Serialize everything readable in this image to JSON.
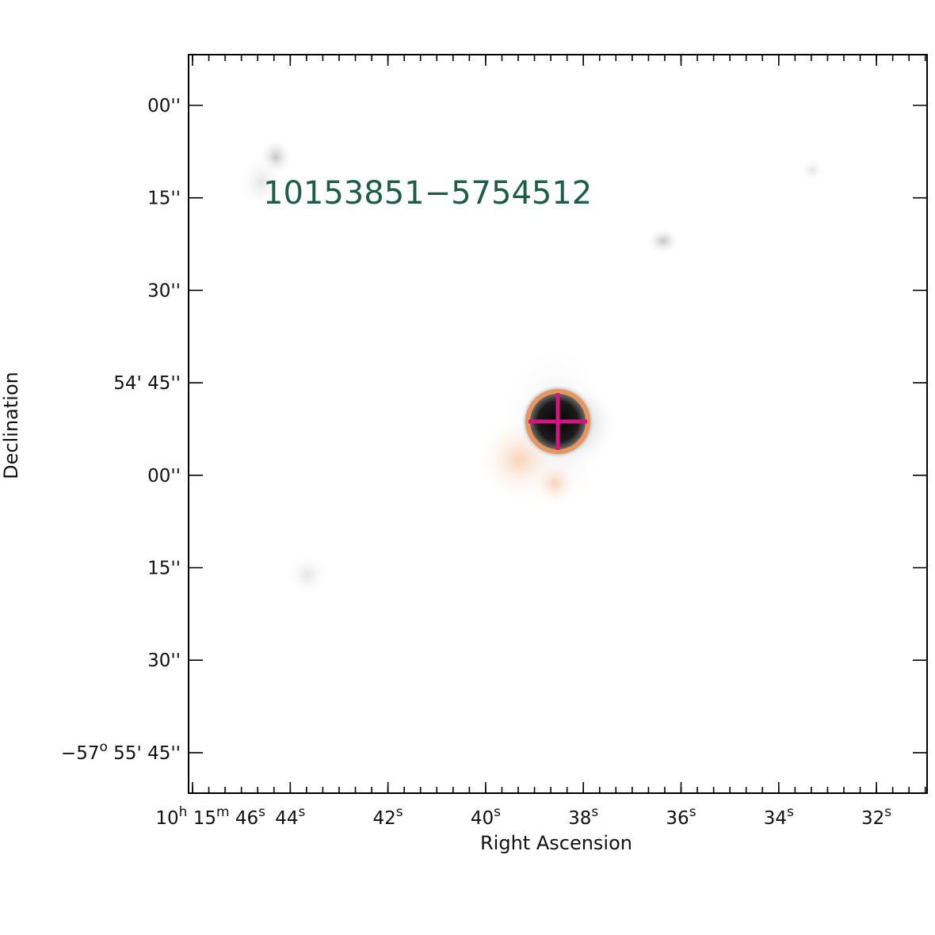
{
  "image": {
    "source_label": "10153851−5754512",
    "source_label_color": "#1b5e45",
    "marker_circle_color": "#e8955f",
    "marker_cross_color": "#d4157f",
    "source_core_color": "#0a0a0a",
    "background_color": "#ffffff"
  },
  "axes": {
    "xlabel": "Right Ascension",
    "ylabel": "Declination",
    "x_ticks": [
      {
        "parts": [
          {
            "t": "10"
          },
          {
            "t": "h",
            "sup": true
          },
          {
            "t": " 15"
          },
          {
            "t": "m",
            "sup": true
          },
          {
            "t": " 46"
          },
          {
            "t": "s",
            "sup": true
          }
        ]
      },
      {
        "parts": [
          {
            "t": "44"
          },
          {
            "t": "s",
            "sup": true
          }
        ]
      },
      {
        "parts": [
          {
            "t": "42"
          },
          {
            "t": "s",
            "sup": true
          }
        ]
      },
      {
        "parts": [
          {
            "t": "40"
          },
          {
            "t": "s",
            "sup": true
          }
        ]
      },
      {
        "parts": [
          {
            "t": "38"
          },
          {
            "t": "s",
            "sup": true
          }
        ]
      },
      {
        "parts": [
          {
            "t": "36"
          },
          {
            "t": "s",
            "sup": true
          }
        ]
      },
      {
        "parts": [
          {
            "t": "34"
          },
          {
            "t": "s",
            "sup": true
          }
        ]
      },
      {
        "parts": [
          {
            "t": "32"
          },
          {
            "t": "s",
            "sup": true
          }
        ]
      }
    ],
    "y_ticks": [
      {
        "parts": [
          {
            "t": "00''"
          }
        ]
      },
      {
        "parts": [
          {
            "t": "15''"
          }
        ]
      },
      {
        "parts": [
          {
            "t": "30''"
          }
        ]
      },
      {
        "parts": [
          {
            "t": "54' 45''"
          }
        ]
      },
      {
        "parts": [
          {
            "t": "00''"
          }
        ]
      },
      {
        "parts": [
          {
            "t": "15''"
          }
        ]
      },
      {
        "parts": [
          {
            "t": "30''"
          }
        ]
      },
      {
        "parts": [
          {
            "t": "−57"
          },
          {
            "t": "o",
            "sup": true
          },
          {
            "t": " 55' 45''"
          }
        ]
      }
    ]
  }
}
